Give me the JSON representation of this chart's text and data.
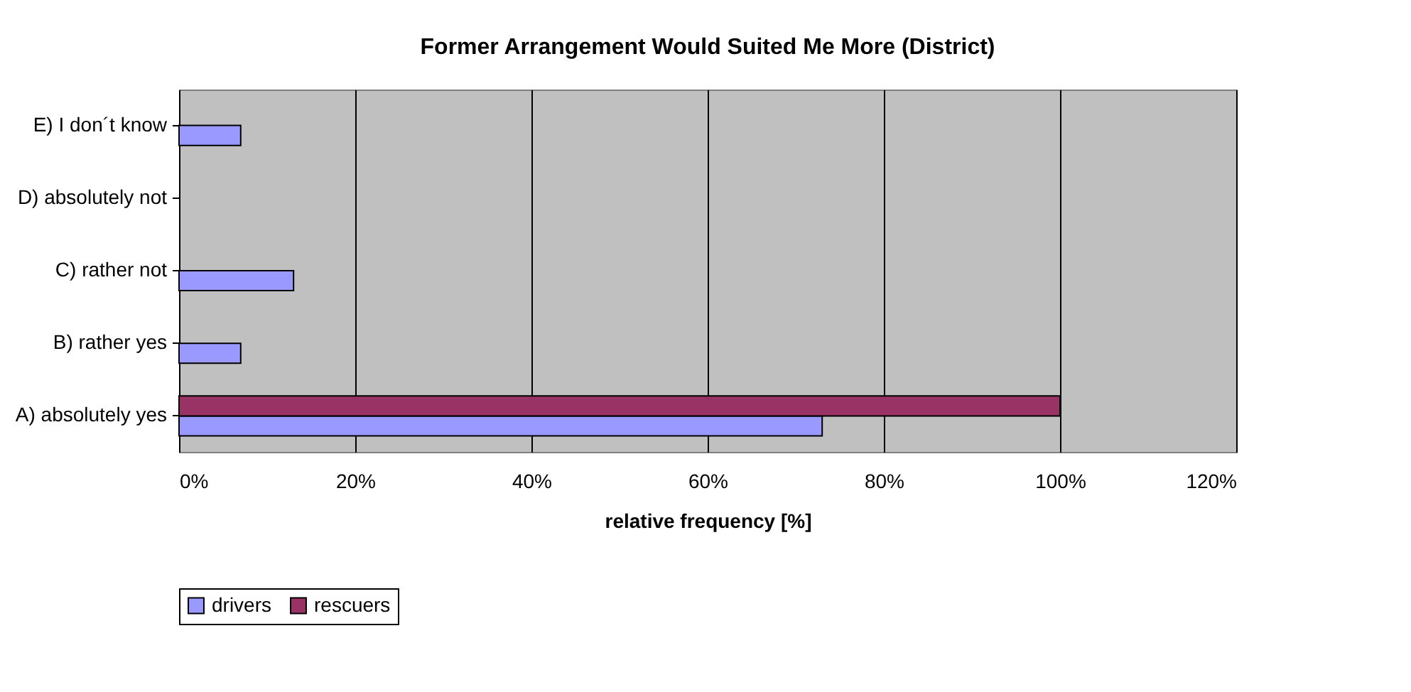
{
  "chart_data": {
    "type": "bar",
    "orientation": "horizontal",
    "title": "Former Arrangement Would Suited Me More (District)",
    "xlabel": "relative frequency [%]",
    "categories": [
      "E) I don´t know",
      "D) absolutely not",
      "C) rather not",
      "B) rather yes",
      "A) absolutely yes"
    ],
    "series": [
      {
        "name": "drivers",
        "color": "#9999ff",
        "values": [
          7,
          null,
          13,
          7,
          73
        ]
      },
      {
        "name": "rescuers",
        "color": "#993366",
        "values": [
          null,
          null,
          null,
          null,
          100
        ]
      }
    ],
    "xlim": [
      0,
      120
    ],
    "xticks": [
      {
        "value": 0,
        "label": "0%"
      },
      {
        "value": 20,
        "label": "20%"
      },
      {
        "value": 40,
        "label": "40%"
      },
      {
        "value": 60,
        "label": "60%"
      },
      {
        "value": 80,
        "label": "80%"
      },
      {
        "value": 100,
        "label": "100%"
      },
      {
        "value": 120,
        "label": "120%"
      }
    ],
    "grid": "x",
    "legend": "bottom"
  }
}
